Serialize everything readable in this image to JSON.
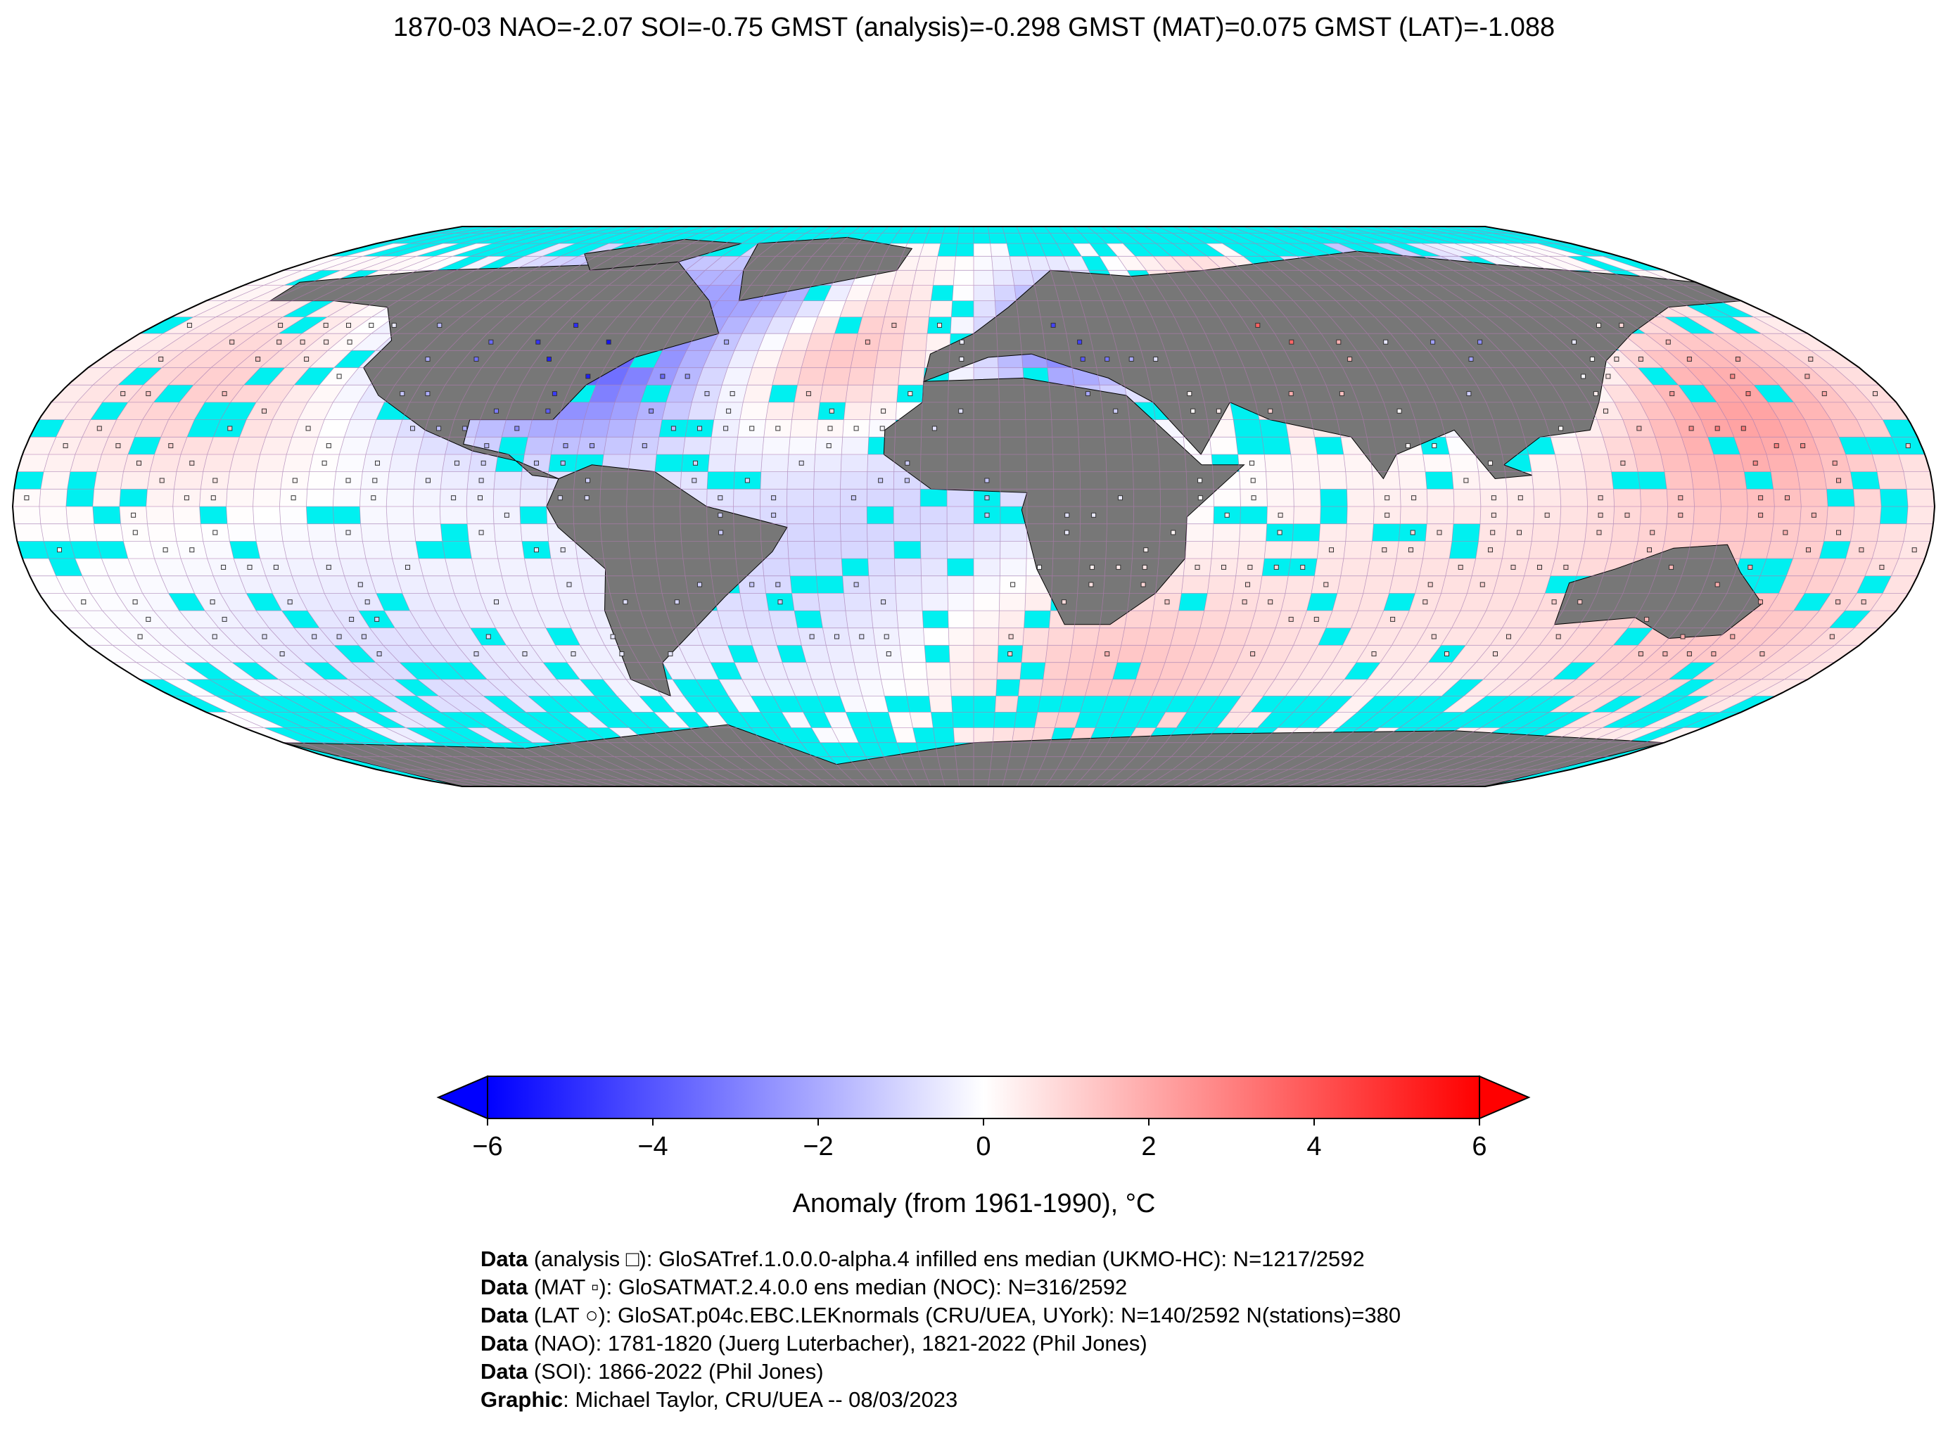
{
  "title": "1870-03 NAO=-2.07 SOI=-0.75 GMST (analysis)=-0.298 GMST (MAT)=0.075 GMST (LAT)=-1.088",
  "colors": {
    "ocean_missing": "#00f0f0",
    "land_missing": "#777777",
    "grid_line": "#b07ab0",
    "coast": "#000000",
    "cold": "#0000ff",
    "neutral": "#ffffff",
    "warm": "#ff0000"
  },
  "map": {
    "projection": "Robinson",
    "features": [
      "continents-landmass",
      "antarctica",
      "anomaly-grid-cells",
      "station-markers"
    ]
  },
  "colorbar": {
    "min": -6,
    "max": 6,
    "extend": "both",
    "ticks": [
      "−6",
      "−4",
      "−2",
      "0",
      "2",
      "4",
      "6"
    ],
    "tick_values": [
      -6,
      -4,
      -2,
      0,
      2,
      4,
      6
    ],
    "label": "Anomaly (from 1961-1990), °C"
  },
  "credits": [
    {
      "bold": "Data",
      "text": " (analysis □): GloSATref.1.0.0.0-alpha.4 infilled ens median (UKMO-HC): N=1217/2592"
    },
    {
      "bold": "Data",
      "text": " (MAT ▫): GloSATMAT.2.4.0.0 ens median (NOC): N=316/2592"
    },
    {
      "bold": "Data",
      "text": " (LAT ○): GloSAT.p04c.EBC.LEKnormals (CRU/UEA, UYork): N=140/2592 N(stations)=380"
    },
    {
      "bold": "Data",
      "text": " (NAO): 1781-1820 (Juerg Luterbacher), 1821-2022 (Phil Jones)"
    },
    {
      "bold": "Data",
      "text": " (SOI): 1866-2022 (Phil Jones)"
    },
    {
      "bold": "Graphic",
      "text": ": Michael Taylor, CRU/UEA -- 08/03/2023"
    }
  ]
}
